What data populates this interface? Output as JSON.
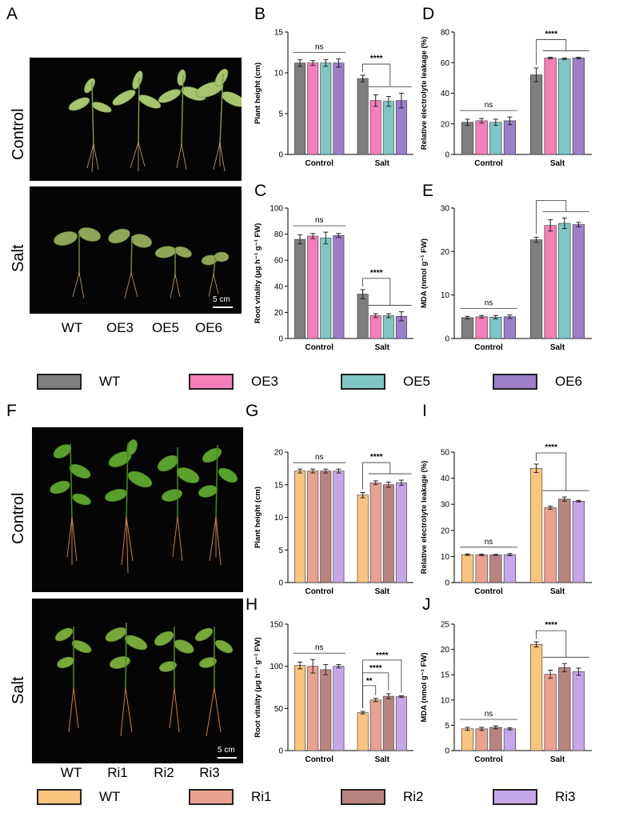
{
  "top": {
    "panel_letters": {
      "A": "A",
      "B": "B",
      "C": "C",
      "D": "D",
      "E": "E"
    },
    "photo_rows": [
      "Control",
      "Salt"
    ],
    "genotypes": [
      "WT",
      "OE3",
      "OE5",
      "OE6"
    ],
    "scale_bar": "5 cm",
    "legend": [
      {
        "label": "WT",
        "color": "#7f7f7f"
      },
      {
        "label": "OE3",
        "color": "#f77eb9"
      },
      {
        "label": "OE5",
        "color": "#7fc6c4"
      },
      {
        "label": "OE6",
        "color": "#9b7fc8"
      }
    ]
  },
  "bottom": {
    "panel_letters": {
      "F": "F",
      "G": "G",
      "H": "H",
      "I": "I",
      "J": "J"
    },
    "photo_rows": [
      "Control",
      "Salt"
    ],
    "genotypes": [
      "WT",
      "Ri1",
      "Ri2",
      "Ri3"
    ],
    "scale_bar": "5 cm",
    "legend": [
      {
        "label": "WT",
        "color": "#f9c57f"
      },
      {
        "label": "Ri1",
        "color": "#eba190"
      },
      {
        "label": "Ri2",
        "color": "#b98480"
      },
      {
        "label": "Ri3",
        "color": "#c6a6ea"
      }
    ]
  },
  "chart_data": [
    {
      "id": "B",
      "type": "bar",
      "categories": [
        "Control",
        "Salt"
      ],
      "ylabel": "Plant height (cm)",
      "ylim": [
        0,
        15
      ],
      "yticks": [
        0,
        5,
        10,
        15
      ],
      "colors": [
        "#7f7f7f",
        "#f77eb9",
        "#7fc6c4",
        "#9b7fc8"
      ],
      "series": [
        {
          "values": [
            11.2,
            9.3
          ]
        },
        {
          "values": [
            11.2,
            6.6
          ]
        },
        {
          "values": [
            11.2,
            6.5
          ]
        },
        {
          "values": [
            11.2,
            6.6
          ]
        }
      ],
      "errors": [
        [
          0.4,
          0.4
        ],
        [
          0.3,
          0.7
        ],
        [
          0.4,
          0.6
        ],
        [
          0.5,
          0.9
        ]
      ],
      "annotations": [
        {
          "group": "Control",
          "text": "ns"
        },
        {
          "group": "Salt",
          "text": "****"
        }
      ]
    },
    {
      "id": "D",
      "type": "bar",
      "categories": [
        "Control",
        "Salt"
      ],
      "ylabel": "Relative electrolyte leakage (%)",
      "ylim": [
        0,
        80
      ],
      "yticks": [
        0,
        20,
        40,
        60,
        80
      ],
      "colors": [
        "#7f7f7f",
        "#f77eb9",
        "#7fc6c4",
        "#9b7fc8"
      ],
      "series": [
        {
          "values": [
            21,
            52
          ]
        },
        {
          "values": [
            22,
            63
          ]
        },
        {
          "values": [
            21,
            62.5
          ]
        },
        {
          "values": [
            22,
            63
          ]
        }
      ],
      "errors": [
        [
          2,
          4.5
        ],
        [
          1.5,
          0.5
        ],
        [
          2,
          0.5
        ],
        [
          2.5,
          0.5
        ]
      ],
      "annotations": [
        {
          "group": "Control",
          "text": "ns"
        },
        {
          "group": "Salt",
          "text": "****"
        }
      ]
    },
    {
      "id": "C",
      "type": "bar",
      "categories": [
        "Control",
        "Salt"
      ],
      "ylabel": "Root vitality (μg h⁻¹ g⁻¹ FW)",
      "ylim": [
        0,
        100
      ],
      "yticks": [
        0,
        20,
        40,
        60,
        80,
        100
      ],
      "colors": [
        "#7f7f7f",
        "#f77eb9",
        "#7fc6c4",
        "#9b7fc8"
      ],
      "series": [
        {
          "values": [
            76,
            34
          ]
        },
        {
          "values": [
            78.5,
            17.5
          ]
        },
        {
          "values": [
            77,
            17.5
          ]
        },
        {
          "values": [
            79,
            17
          ]
        }
      ],
      "errors": [
        [
          3.5,
          3.5
        ],
        [
          2,
          1.5
        ],
        [
          4.5,
          1.5
        ],
        [
          1.5,
          3.5
        ]
      ],
      "annotations": [
        {
          "group": "Control",
          "text": "ns"
        },
        {
          "group": "Salt",
          "text": "****"
        }
      ]
    },
    {
      "id": "E",
      "type": "bar",
      "categories": [
        "Control",
        "Salt"
      ],
      "ylabel": "MDA (nmol g⁻¹ FW)",
      "ylim": [
        0,
        30
      ],
      "yticks": [
        0,
        10,
        20,
        30
      ],
      "colors": [
        "#7f7f7f",
        "#f77eb9",
        "#7fc6c4",
        "#9b7fc8"
      ],
      "series": [
        {
          "values": [
            4.8,
            22.7
          ]
        },
        {
          "values": [
            5.0,
            26.0
          ]
        },
        {
          "values": [
            4.9,
            26.5
          ]
        },
        {
          "values": [
            5.0,
            26.2
          ]
        }
      ],
      "errors": [
        [
          0.3,
          0.6
        ],
        [
          0.3,
          1.3
        ],
        [
          0.4,
          1.2
        ],
        [
          0.4,
          0.5
        ]
      ],
      "annotations": [
        {
          "group": "Control",
          "text": "ns"
        },
        {
          "group": "Salt",
          "text": "****"
        }
      ]
    },
    {
      "id": "G",
      "type": "bar",
      "categories": [
        "Control",
        "Salt"
      ],
      "ylabel": "Plant height (cm)",
      "ylim": [
        0,
        20
      ],
      "yticks": [
        0,
        5,
        10,
        15,
        20
      ],
      "colors": [
        "#f9c57f",
        "#eba190",
        "#b98480",
        "#c6a6ea"
      ],
      "series": [
        {
          "values": [
            17.1,
            13.4
          ]
        },
        {
          "values": [
            17.1,
            15.3
          ]
        },
        {
          "values": [
            17.1,
            15.0
          ]
        },
        {
          "values": [
            17.1,
            15.3
          ]
        }
      ],
      "errors": [
        [
          0.3,
          0.4
        ],
        [
          0.3,
          0.3
        ],
        [
          0.3,
          0.4
        ],
        [
          0.3,
          0.4
        ]
      ],
      "annotations": [
        {
          "group": "Control",
          "text": "ns"
        },
        {
          "group": "Salt",
          "text": "****"
        }
      ]
    },
    {
      "id": "I",
      "type": "bar",
      "categories": [
        "Control",
        "Salt"
      ],
      "ylabel": "Relative electrolyte leakage (%)",
      "ylim": [
        0,
        50
      ],
      "yticks": [
        0,
        10,
        20,
        30,
        40,
        50
      ],
      "colors": [
        "#f9c57f",
        "#eba190",
        "#b98480",
        "#c6a6ea"
      ],
      "series": [
        {
          "values": [
            10.7,
            43.8
          ]
        },
        {
          "values": [
            10.6,
            28.7
          ]
        },
        {
          "values": [
            10.6,
            32.0
          ]
        },
        {
          "values": [
            10.7,
            31.2
          ]
        }
      ],
      "errors": [
        [
          0.3,
          1.6
        ],
        [
          0.3,
          0.6
        ],
        [
          0.2,
          0.8
        ],
        [
          0.4,
          0.3
        ]
      ],
      "annotations": [
        {
          "group": "Control",
          "text": "ns"
        },
        {
          "group": "Salt",
          "text": "****"
        }
      ]
    },
    {
      "id": "H",
      "type": "bar",
      "categories": [
        "Control",
        "Salt"
      ],
      "ylabel": "Root vitality (μg h⁻¹ g⁻¹ FW)",
      "ylim": [
        0,
        150
      ],
      "yticks": [
        0,
        50,
        100,
        150
      ],
      "colors": [
        "#f9c57f",
        "#eba190",
        "#b98480",
        "#c6a6ea"
      ],
      "series": [
        {
          "values": [
            101,
            45
          ]
        },
        {
          "values": [
            100,
            60
          ]
        },
        {
          "values": [
            96,
            64.5
          ]
        },
        {
          "values": [
            100,
            64
          ]
        }
      ],
      "errors": [
        [
          4,
          1.5
        ],
        [
          8,
          2
        ],
        [
          6,
          3
        ],
        [
          2,
          1
        ]
      ],
      "annotations": [
        {
          "group": "Control",
          "text": "ns"
        },
        {
          "group": "Salt",
          "text": "**"
        },
        {
          "group": "Salt",
          "text": "****"
        },
        {
          "group": "Salt",
          "text": "****"
        }
      ]
    },
    {
      "id": "J",
      "type": "bar",
      "categories": [
        "Control",
        "Salt"
      ],
      "ylabel": "MDA (nmol g⁻¹ FW)",
      "ylim": [
        0,
        25
      ],
      "yticks": [
        0,
        5,
        10,
        15,
        20,
        25
      ],
      "colors": [
        "#f9c57f",
        "#eba190",
        "#b98480",
        "#c6a6ea"
      ],
      "series": [
        {
          "values": [
            4.3,
            21.0
          ]
        },
        {
          "values": [
            4.3,
            15.1
          ]
        },
        {
          "values": [
            4.6,
            16.4
          ]
        },
        {
          "values": [
            4.3,
            15.6
          ]
        }
      ],
      "errors": [
        [
          0.3,
          0.5
        ],
        [
          0.3,
          0.8
        ],
        [
          0.3,
          0.8
        ],
        [
          0.2,
          0.7
        ]
      ],
      "annotations": [
        {
          "group": "Control",
          "text": "ns"
        },
        {
          "group": "Salt",
          "text": "****"
        }
      ]
    }
  ]
}
